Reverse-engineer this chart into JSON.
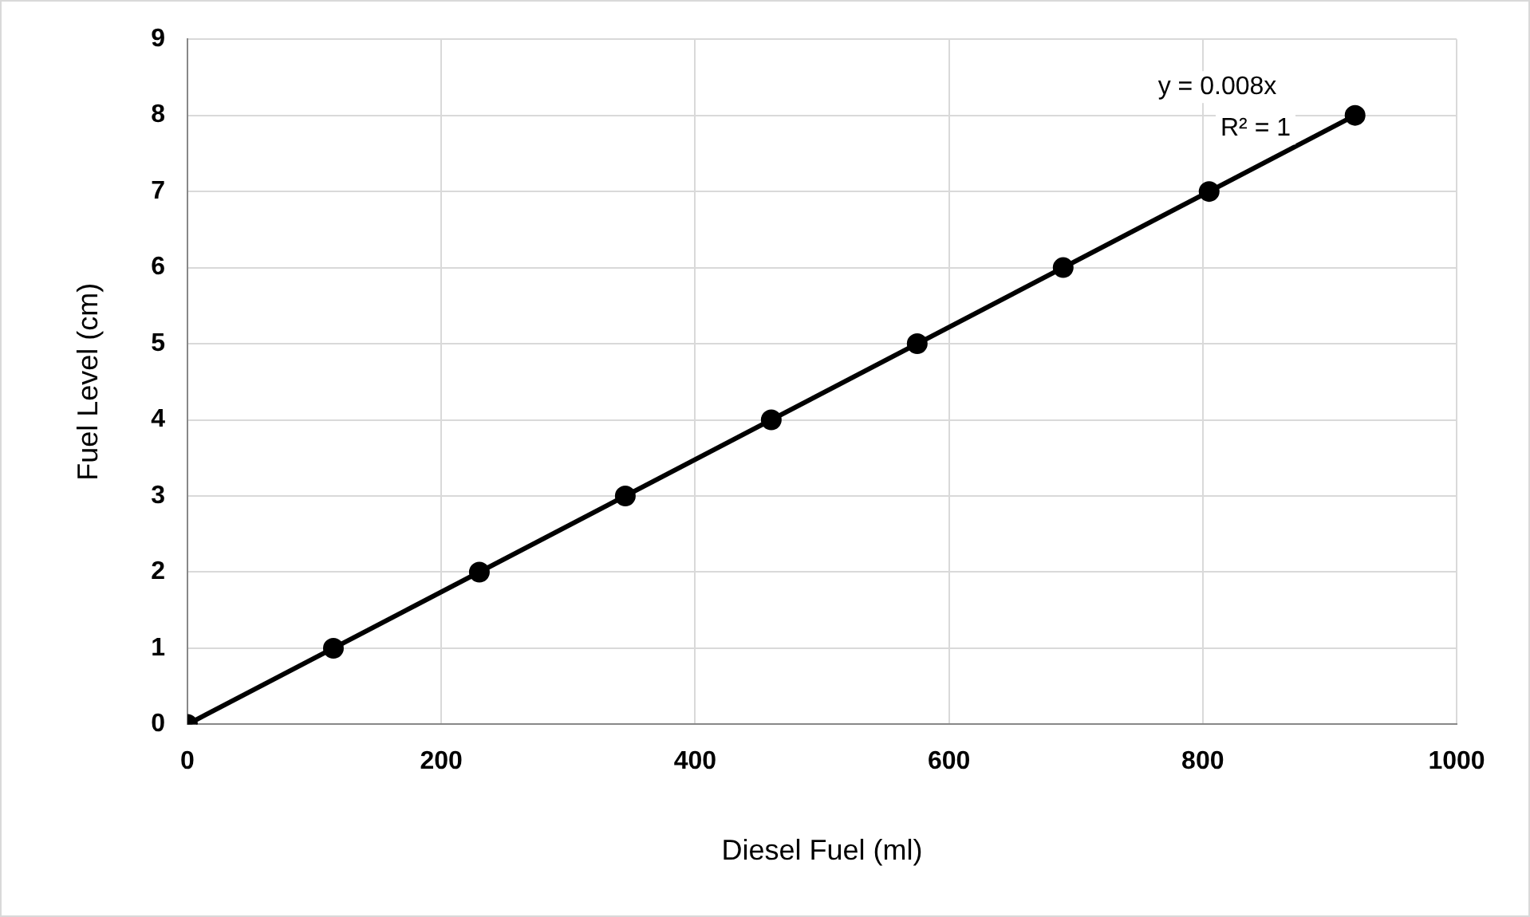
{
  "chart_data": {
    "type": "scatter",
    "xlabel": "Diesel Fuel (ml)",
    "ylabel": "Fuel Level (cm)",
    "xlim": [
      0,
      1000
    ],
    "xticks": [
      0,
      200,
      400,
      600,
      800,
      1000
    ],
    "ylim": [
      0,
      9
    ],
    "yticks": [
      0,
      1,
      2,
      3,
      4,
      5,
      6,
      7,
      8,
      9
    ],
    "grid": true,
    "legend": false,
    "marker": "circle",
    "series": [
      {
        "type": "line",
        "marker": "none",
        "color": "#000000",
        "x": [
          0,
          920
        ],
        "values": [
          0,
          8
        ]
      },
      {
        "color": "#000000",
        "x": [
          0,
          115,
          230,
          345,
          460,
          575,
          690,
          805,
          920
        ],
        "values": [
          0,
          1,
          2,
          3,
          4,
          5,
          6,
          7,
          8
        ]
      }
    ],
    "annotations": [
      "y = 0.008x",
      "R² = 1"
    ]
  }
}
